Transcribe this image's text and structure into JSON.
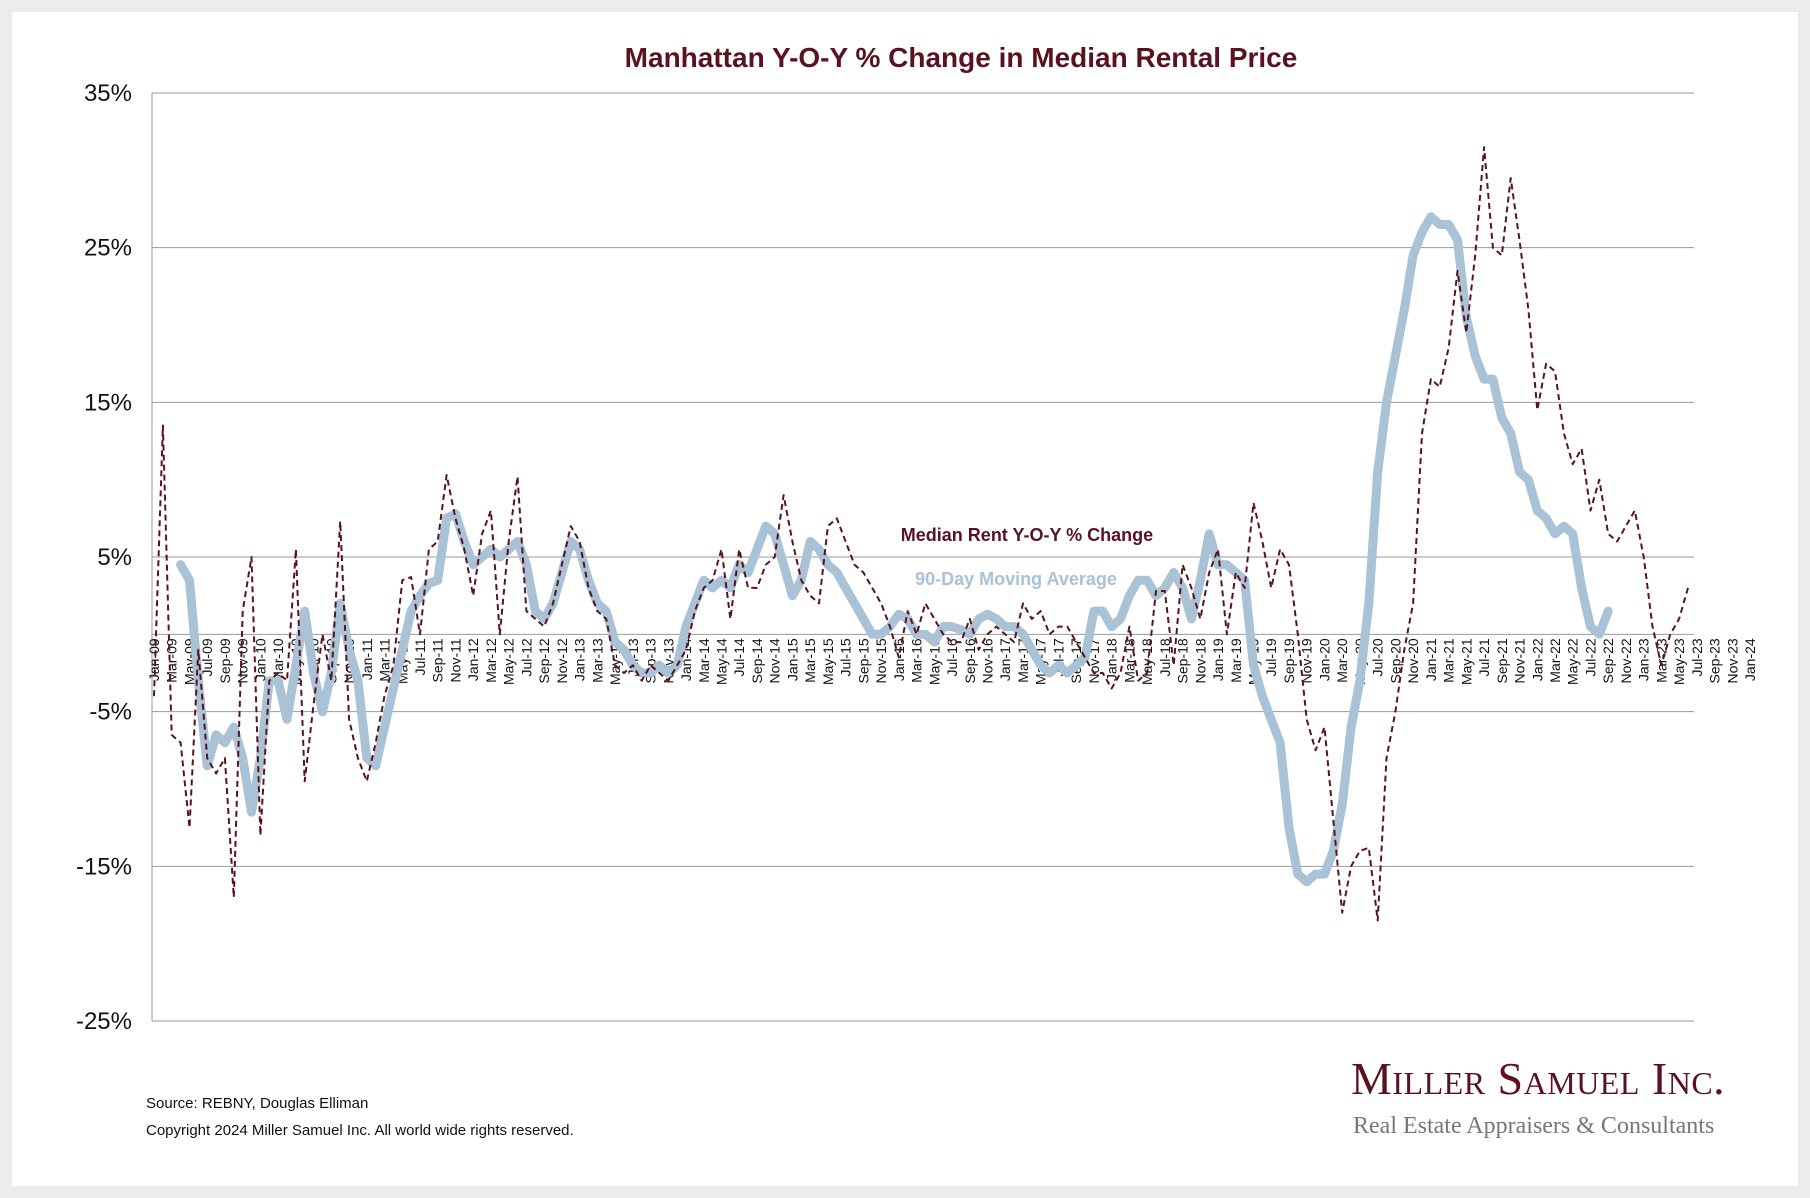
{
  "colors": {
    "rent": "#5a1220",
    "avg": "#a9c2d6",
    "title": "#5a1220",
    "grid": "#9a9a9a"
  },
  "footer": {
    "source": "Source: REBNY, Douglas Elliman",
    "copyright": "Copyright 2024 Miller Samuel Inc.  All world wide rights reserved."
  },
  "logo": {
    "name": "Miller Samuel Inc.",
    "tagline": "Real Estate Appraisers & Consultants"
  },
  "chart_data": {
    "type": "line",
    "title": "Manhattan Y-O-Y % Change in Median Rental Price",
    "xlabel": "",
    "ylabel": "",
    "ylim": [
      -25,
      35
    ],
    "y_ticks": [
      "35%",
      "25%",
      "15%",
      "5%",
      "-5%",
      "-15%",
      "-25%"
    ],
    "y_tick_values": [
      35,
      25,
      15,
      5,
      -5,
      -15,
      -25
    ],
    "grid": true,
    "legend": "inline labels near center",
    "x_labels": [
      "Jan-09",
      "Mar-09",
      "May-09",
      "Jul-09",
      "Sep-09",
      "Nov-09",
      "Jan-10",
      "Mar-10",
      "May-10",
      "Jul-10",
      "Sep-10",
      "Nov-10",
      "Jan-11",
      "Mar-11",
      "May-11",
      "Jul-11",
      "Sep-11",
      "Nov-11",
      "Jan-12",
      "Mar-12",
      "May-12",
      "Jul-12",
      "Sep-12",
      "Nov-12",
      "Jan-13",
      "Mar-13",
      "May-13",
      "Jul-13",
      "Sep-13",
      "Nov-13",
      "Jan-14",
      "Mar-14",
      "May-14",
      "Jul-14",
      "Sep-14",
      "Nov-14",
      "Jan-15",
      "Mar-15",
      "May-15",
      "Jul-15",
      "Sep-15",
      "Nov-15",
      "Jan-16",
      "Mar-16",
      "May-16",
      "Jul-16",
      "Sep-16",
      "Nov-16",
      "Jan-17",
      "Mar-17",
      "May-17",
      "Jul-17",
      "Sep-17",
      "Nov-17",
      "Jan-18",
      "Mar-18",
      "May-18",
      "Jul-18",
      "Sep-18",
      "Nov-18",
      "Jan-19",
      "Mar-19",
      "May-19",
      "Jul-19",
      "Sep-19",
      "Nov-19",
      "Jan-20",
      "Mar-20",
      "May-20",
      "Jul-20",
      "Sep-20",
      "Nov-20",
      "Jan-21",
      "Mar-21",
      "May-21",
      "Jul-21",
      "Sep-21",
      "Nov-21",
      "Jan-22",
      "Mar-22",
      "May-22",
      "Jul-22",
      "Sep-22",
      "Nov-22",
      "Jan-23",
      "Mar-23",
      "May-23",
      "Jul-23",
      "Sep-23",
      "Nov-23",
      "Jan-24"
    ],
    "series": [
      {
        "name": "Median Rent Y-O-Y % Change",
        "style": "dashed",
        "start": "Jan-09",
        "values": [
          -4.0,
          13.5,
          -6.5,
          -7,
          -12.5,
          -1,
          -8,
          -9,
          -8,
          -17,
          1.5,
          5,
          -13,
          -3,
          -2.5,
          -3,
          5.5,
          -9.5,
          -4.5,
          0,
          -3,
          7.3,
          -5.5,
          -8,
          -9.5,
          -7,
          -4,
          -2,
          3.5,
          3.7,
          0,
          5.5,
          6,
          10.3,
          7.5,
          5.5,
          2.5,
          6.5,
          8,
          0,
          6,
          10.2,
          1.5,
          1,
          0.5,
          2,
          4.5,
          7,
          6,
          3,
          1.5,
          1,
          -2,
          -2.5,
          -2,
          -3,
          -2,
          -2.5,
          -3,
          -2,
          -1,
          1.5,
          3,
          3.5,
          5.5,
          1,
          5.5,
          3,
          3,
          4.5,
          5,
          9,
          6,
          3.5,
          2.5,
          2,
          7,
          7.5,
          6,
          4.5,
          4,
          3,
          2,
          0.5,
          -1.5,
          1.5,
          0,
          2,
          1,
          0,
          -0.5,
          -0.5,
          1,
          -1,
          0,
          0.5,
          0,
          -0.5,
          2,
          1,
          1.5,
          0,
          0.5,
          0.5,
          -0.5,
          -1.5,
          -2.5,
          -2.5,
          -3.5,
          -2.5,
          0.5,
          -3,
          -2.5,
          2.8,
          2.8,
          -2,
          4.5,
          3,
          1,
          4,
          5.5,
          0,
          4,
          3,
          8.5,
          6,
          3,
          5.5,
          4.5,
          0,
          -5.5,
          -7.5,
          -6,
          -12,
          -18,
          -15,
          -14,
          -13.8,
          -18.5,
          -8,
          -5,
          -1,
          2,
          13,
          16.5,
          16,
          18.5,
          23.5,
          19.5,
          24.5,
          31.5,
          25,
          24.5,
          29.5,
          25.5,
          21,
          14.5,
          17.5,
          17,
          13,
          11,
          12,
          8,
          10,
          6.5,
          6,
          7,
          8,
          5,
          0.5,
          -2,
          0,
          1,
          3
        ]
      },
      {
        "name": "90-Day Moving Average",
        "style": "solid-thick",
        "start": "Apr-09",
        "values": [
          4.5,
          3.5,
          -3,
          -8.5,
          -6.5,
          -7,
          -6,
          -8,
          -11.5,
          -8,
          -3,
          -3,
          -5.5,
          -2,
          1.5,
          -2.5,
          -5,
          -2.5,
          2,
          -1,
          -3,
          -8,
          -8.5,
          -6,
          -3.5,
          -1,
          1.5,
          2.5,
          3.3,
          3.5,
          7.5,
          7.8,
          6,
          4.5,
          5,
          5.5,
          5,
          5.5,
          6,
          4.5,
          1.5,
          1,
          2,
          4,
          6,
          5.5,
          3.5,
          2,
          1.5,
          -0.5,
          -1,
          -2,
          -2.5,
          -2.5,
          -2,
          -2.5,
          -2,
          0.5,
          2,
          3.5,
          3,
          3.5,
          3,
          4.5,
          4,
          5.5,
          7,
          6.5,
          4.5,
          2.5,
          3.5,
          6,
          5.5,
          4.5,
          4,
          3,
          2,
          1,
          0,
          0,
          0.5,
          1.3,
          1,
          0,
          0,
          -0.5,
          0.5,
          0.5,
          0.3,
          0,
          1,
          1.3,
          1,
          0.5,
          0.5,
          0,
          -1,
          -2,
          -2.5,
          -2,
          -2.5,
          -2,
          -1.5,
          1.5,
          1.5,
          0.5,
          1,
          2.5,
          3.5,
          3.5,
          2.5,
          3,
          4,
          3,
          1,
          3.5,
          6.5,
          4.5,
          4.5,
          4,
          3.5,
          -2,
          -4,
          -5.5,
          -7,
          -12.5,
          -15.5,
          -16,
          -15.5,
          -15.5,
          -14,
          -11,
          -6,
          -3,
          2,
          10.5,
          15,
          18,
          21,
          24.5,
          26,
          27,
          26.5,
          26.5,
          25.5,
          20.5,
          18,
          16.5,
          16.5,
          14,
          13,
          10.5,
          10,
          8,
          7.5,
          6.5,
          7,
          6.5,
          3,
          0.5,
          0,
          1.5
        ]
      }
    ]
  }
}
